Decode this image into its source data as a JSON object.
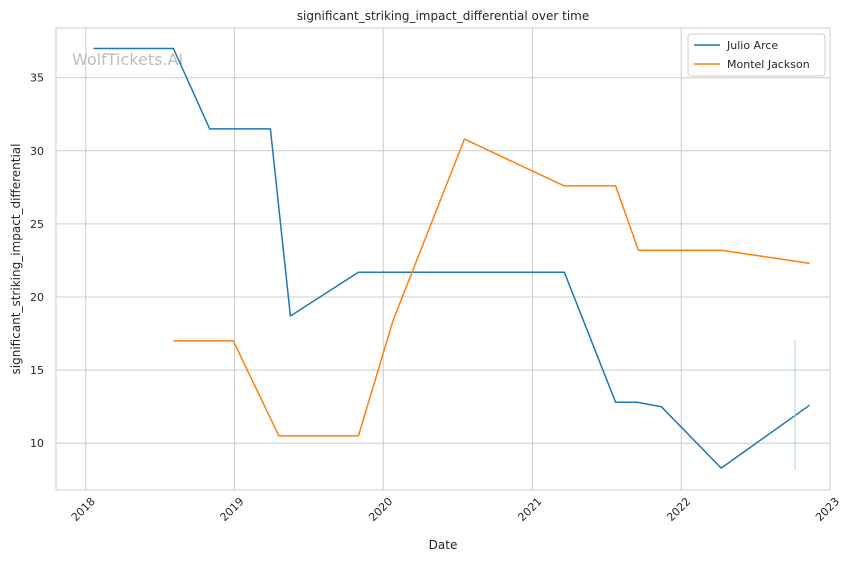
{
  "chart_data": {
    "type": "line",
    "title": "significant_striking_impact_differential over time",
    "xlabel": "Date",
    "ylabel": "significant_striking_impact_differential",
    "watermark": "WolfTickets.AI",
    "x_ticks": [
      "2018",
      "2019",
      "2020",
      "2021",
      "2022",
      "2023"
    ],
    "y_ticks": [
      "10",
      "15",
      "20",
      "25",
      "30",
      "35"
    ],
    "xlim": [
      "2017-10-20",
      "2023-01-01"
    ],
    "ylim": [
      6.8,
      38.4
    ],
    "grid": true,
    "legend_position": "top-right",
    "series": [
      {
        "name": "Julio Arce",
        "color": "#1f77b4",
        "points": [
          [
            "2018-01-20",
            37.0
          ],
          [
            "2018-08-04",
            37.0
          ],
          [
            "2018-11-01",
            31.5
          ],
          [
            "2019-03-30",
            31.5
          ],
          [
            "2019-05-18",
            18.7
          ],
          [
            "2019-11-01",
            21.7
          ],
          [
            "2021-03-20",
            21.7
          ],
          [
            "2021-07-24",
            12.8
          ],
          [
            "2021-09-15",
            12.8
          ],
          [
            "2021-11-13",
            12.5
          ],
          [
            "2022-04-09",
            8.3
          ],
          [
            "2022-11-12",
            12.6
          ]
        ]
      },
      {
        "name": "Montel Jackson",
        "color": "#ff7f0e",
        "points": [
          [
            "2018-08-04",
            17.0
          ],
          [
            "2018-12-29",
            17.0
          ],
          [
            "2019-04-20",
            10.5
          ],
          [
            "2019-11-01",
            10.5
          ],
          [
            "2020-01-25",
            18.4
          ],
          [
            "2020-07-18",
            30.8
          ],
          [
            "2021-03-20",
            27.6
          ],
          [
            "2021-07-24",
            27.6
          ],
          [
            "2021-09-18",
            23.2
          ],
          [
            "2022-04-09",
            23.2
          ],
          [
            "2022-11-12",
            22.3
          ]
        ]
      }
    ]
  }
}
